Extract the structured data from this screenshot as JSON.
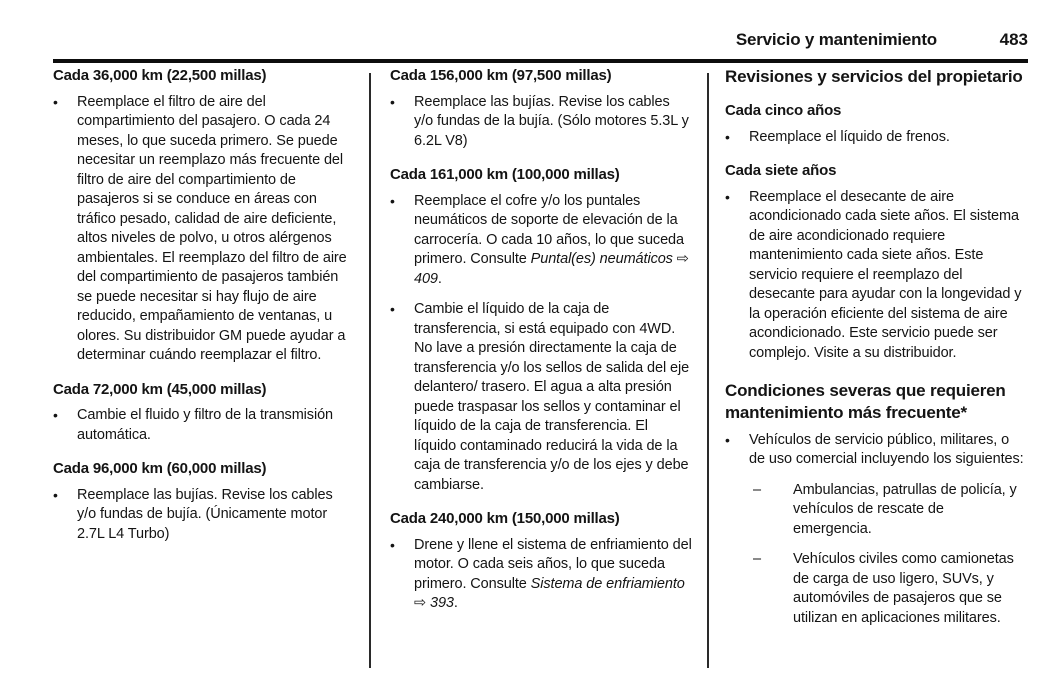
{
  "header": {
    "title": "Servicio y mantenimiento",
    "page_number": "483"
  },
  "glyphs": {
    "bullet": "•",
    "dash": "–",
    "arrow": "⇨"
  },
  "colors": {
    "text": "#141414",
    "rule": "#0d0d0d"
  },
  "columns": [
    {
      "blocks": [
        {
          "type": "heading",
          "text": "Cada 36,000 km (22,500 millas)"
        },
        {
          "type": "bullet",
          "runs": [
            {
              "t": "Reemplace el filtro de aire del compartimiento del pasajero. O cada 24 meses, lo que suceda primero. Se puede necesitar un reemplazo más frecuente del filtro de aire del compartimiento de pasajeros si se conduce en áreas con tráfico pesado, calidad de aire deficiente, altos niveles de polvo, u otros alérgenos ambientales. El reemplazo del filtro de aire del compartimiento de pasajeros también se puede necesitar si hay flujo de aire reducido, empañamiento de ventanas, u olores. Su distribuidor GM puede ayudar a determinar cuándo reemplazar el filtro."
            }
          ]
        },
        {
          "type": "heading",
          "text": "Cada 72,000 km (45,000 millas)"
        },
        {
          "type": "bullet",
          "runs": [
            {
              "t": "Cambie el fluido y filtro de la transmisión automática."
            }
          ]
        },
        {
          "type": "heading",
          "text": "Cada 96,000 km (60,000 millas)"
        },
        {
          "type": "bullet",
          "runs": [
            {
              "t": "Reemplace las bujías. Revise los cables y/o fundas de bujía. (Únicamente motor 2.7L L4 Turbo)"
            }
          ]
        }
      ]
    },
    {
      "blocks": [
        {
          "type": "heading",
          "text": "Cada 156,000 km (97,500 millas)"
        },
        {
          "type": "bullet",
          "runs": [
            {
              "t": "Reemplace las bujías. Revise los cables y/o fundas de la bujía. (Sólo motores 5.3L y 6.2L V8)"
            }
          ]
        },
        {
          "type": "heading",
          "text": "Cada 161,000 km (100,000 millas)"
        },
        {
          "type": "bullet",
          "runs": [
            {
              "t": "Reemplace el cofre y/o los puntales neumáticos de soporte de elevación de la carrocería. O cada 10 años, lo que suceda primero. Consulte "
            },
            {
              "t": "Puntal(es) neumáticos",
              "i": true
            },
            {
              "t": " ⇨ "
            },
            {
              "t": "409",
              "i": true
            },
            {
              "t": "."
            }
          ]
        },
        {
          "type": "bullet",
          "runs": [
            {
              "t": "Cambie el líquido de la caja de transferencia, si está equipado con 4WD. No lave a presión directamente la caja de transferencia y/o los sellos de salida del eje delantero/ trasero. El agua a alta presión puede traspasar los sellos y contaminar el líquido de la caja de transferencia. El líquido contaminado reducirá la vida de la caja de transferencia y/o de los ejes y debe cambiarse."
            }
          ]
        },
        {
          "type": "heading",
          "text": "Cada 240,000 km (150,000 millas)"
        },
        {
          "type": "bullet",
          "runs": [
            {
              "t": "Drene y llene el sistema de enfriamiento del motor. O cada seis años, lo que suceda primero. Consulte "
            },
            {
              "t": "Sistema de enfriamiento",
              "i": true
            },
            {
              "t": " ⇨ "
            },
            {
              "t": "393",
              "i": true
            },
            {
              "t": "."
            }
          ]
        }
      ]
    },
    {
      "blocks": [
        {
          "type": "section-heading",
          "text": "Revisiones y servicios del propietario"
        },
        {
          "type": "heading",
          "text": "Cada cinco años"
        },
        {
          "type": "bullet",
          "runs": [
            {
              "t": "Reemplace el líquido de frenos."
            }
          ]
        },
        {
          "type": "heading",
          "text": "Cada siete años"
        },
        {
          "type": "bullet",
          "runs": [
            {
              "t": "Reemplace el desecante de aire acondicionado cada siete años. El sistema de aire acondicionado requiere mantenimiento cada siete años. Este servicio requiere el reemplazo del desecante para ayudar con la longevidad y la operación eficiente del sistema de aire acondicionado. Este servicio puede ser complejo. Visite a su distribuidor."
            }
          ]
        },
        {
          "type": "section-heading",
          "text": "Condiciones severas que requieren mantenimiento más frecuente*"
        },
        {
          "type": "bullet",
          "runs": [
            {
              "t": "Vehículos de servicio público, militares, o de uso comercial incluyendo los siguientes:"
            }
          ]
        },
        {
          "type": "dash-item",
          "runs": [
            {
              "t": "Ambulancias, patrullas de policía, y vehículos de rescate de emergencia."
            }
          ]
        },
        {
          "type": "dash-item",
          "runs": [
            {
              "t": "Vehículos civiles como camionetas de carga de uso ligero, SUVs, y automóviles de pasajeros que se utilizan en aplicaciones militares."
            }
          ]
        }
      ]
    }
  ]
}
